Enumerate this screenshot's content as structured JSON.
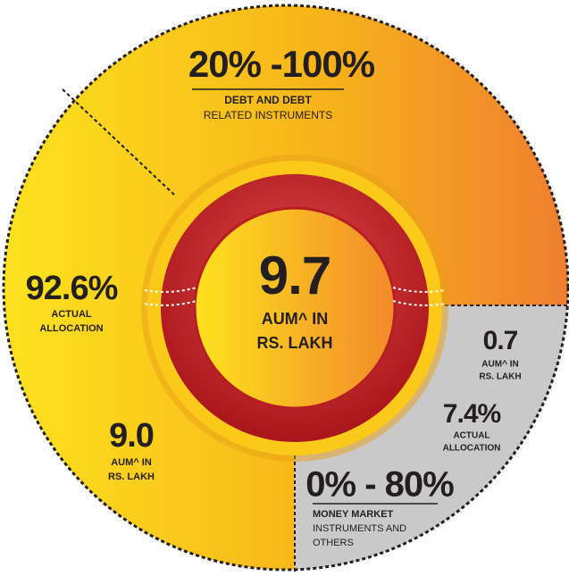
{
  "debt": {
    "range": "20% -100%",
    "title": "DEBT AND DEBT",
    "subtitle": "RELATED INSTRUMENTS",
    "allocation": {
      "value": "92.6%",
      "label": [
        "ACTUAL",
        "ALLOCATION"
      ]
    },
    "aum": {
      "value": "9.0",
      "label": [
        "AUM^ IN",
        "RS. LAKH"
      ]
    }
  },
  "center": {
    "value": "9.7",
    "label": [
      "AUM^ IN",
      "RS. LAKH"
    ]
  },
  "money_market": {
    "range": "0% - 80%",
    "title": "MONEY MARKET",
    "subtitle": [
      "INSTRUMENTS AND",
      "OTHERS"
    ],
    "allocation": {
      "value": "7.4%",
      "label": [
        "ACTUAL",
        "ALLOCATION"
      ]
    },
    "aum": {
      "value": "0.7",
      "label": [
        "AUM^ IN",
        "RS. LAKH"
      ]
    }
  }
}
